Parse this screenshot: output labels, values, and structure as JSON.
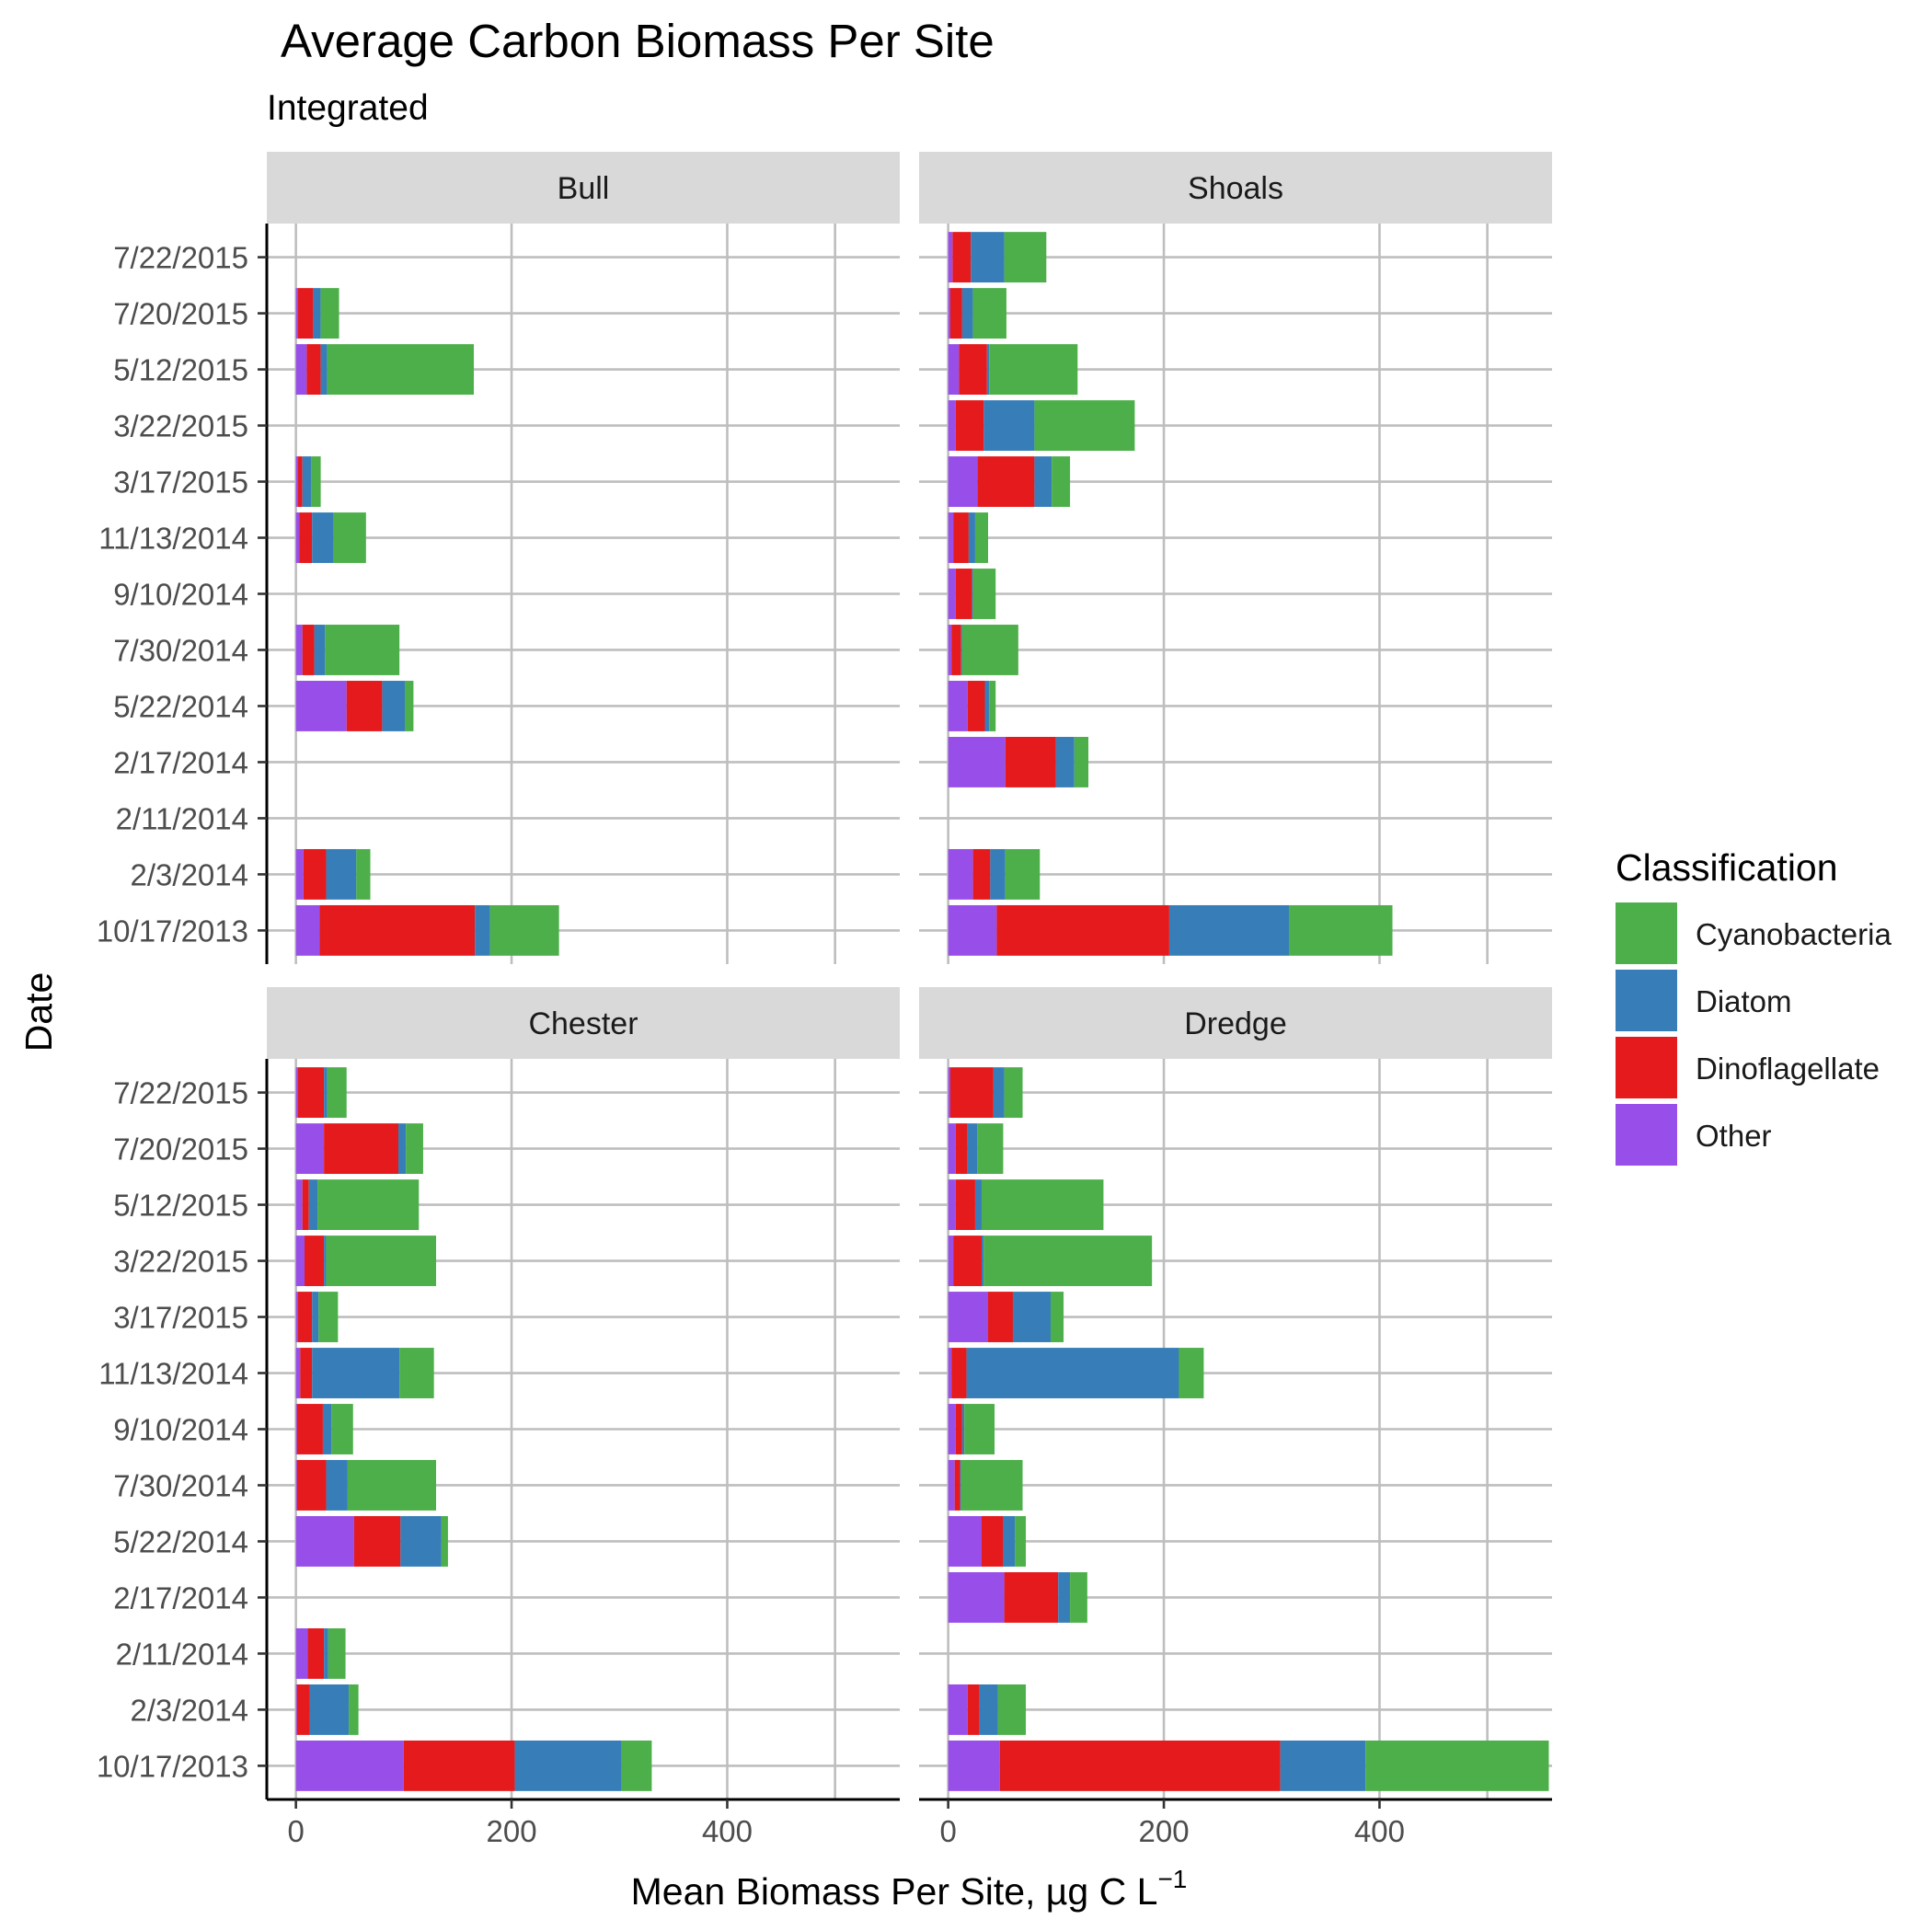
{
  "chart_data": {
    "type": "bar",
    "orientation": "horizontal",
    "stacked": true,
    "title": "Average Carbon Biomass Per Site",
    "subtitle": "Integrated",
    "xlabel": "Mean Biomass Per Site, µg C L",
    "xlabel_superscript": "−1",
    "ylabel": "Date",
    "legend_title": "Classification",
    "legend_position": "right",
    "grid": true,
    "xlim": [
      -27,
      560
    ],
    "xticks": [
      0,
      200,
      400
    ],
    "categories": [
      "7/22/2015",
      "7/20/2015",
      "5/12/2015",
      "3/22/2015",
      "3/17/2015",
      "11/13/2014",
      "9/10/2014",
      "7/30/2014",
      "5/22/2014",
      "2/17/2014",
      "2/11/2014",
      "2/3/2014",
      "10/17/2013"
    ],
    "stack_order": [
      "Other",
      "Dinoflagellate",
      "Diatom",
      "Cyanobacteria"
    ],
    "series_colors": {
      "Cyanobacteria": "#4DAF4A",
      "Diatom": "#377EB8",
      "Dinoflagellate": "#E41A1C",
      "Other": "#984EE8"
    },
    "legend_items": [
      "Cyanobacteria",
      "Diatom",
      "Dinoflagellate",
      "Other"
    ],
    "panels": [
      {
        "name": "Bull",
        "data": {
          "7/20/2015": {
            "Other": 2,
            "Dinoflagellate": 14,
            "Diatom": 7,
            "Cyanobacteria": 17
          },
          "5/12/2015": {
            "Other": 10,
            "Dinoflagellate": 13,
            "Diatom": 6,
            "Cyanobacteria": 136
          },
          "3/17/2015": {
            "Other": 2,
            "Dinoflagellate": 4,
            "Diatom": 8,
            "Cyanobacteria": 9
          },
          "11/13/2014": {
            "Other": 3,
            "Dinoflagellate": 12,
            "Diatom": 20,
            "Cyanobacteria": 30
          },
          "7/30/2014": {
            "Other": 6,
            "Dinoflagellate": 11,
            "Diatom": 10,
            "Cyanobacteria": 69
          },
          "5/22/2014": {
            "Other": 47,
            "Dinoflagellate": 33,
            "Diatom": 21,
            "Cyanobacteria": 8
          },
          "2/3/2014": {
            "Other": 7,
            "Dinoflagellate": 21,
            "Diatom": 28,
            "Cyanobacteria": 13
          },
          "10/17/2013": {
            "Other": 22,
            "Dinoflagellate": 144,
            "Diatom": 14,
            "Cyanobacteria": 64
          }
        }
      },
      {
        "name": "Shoals",
        "data": {
          "7/22/2015": {
            "Other": 4,
            "Dinoflagellate": 17,
            "Diatom": 31,
            "Cyanobacteria": 39
          },
          "7/20/2015": {
            "Other": 2,
            "Dinoflagellate": 11,
            "Diatom": 10,
            "Cyanobacteria": 31
          },
          "5/12/2015": {
            "Other": 10,
            "Dinoflagellate": 26,
            "Diatom": 2,
            "Cyanobacteria": 82
          },
          "3/22/2015": {
            "Other": 7,
            "Dinoflagellate": 26,
            "Diatom": 47,
            "Cyanobacteria": 93
          },
          "3/17/2015": {
            "Other": 27,
            "Dinoflagellate": 53,
            "Diatom": 16,
            "Cyanobacteria": 17
          },
          "11/13/2014": {
            "Other": 5,
            "Dinoflagellate": 14,
            "Diatom": 6,
            "Cyanobacteria": 12
          },
          "9/10/2014": {
            "Other": 7,
            "Dinoflagellate": 15,
            "Diatom": 1,
            "Cyanobacteria": 21
          },
          "7/30/2014": {
            "Other": 3,
            "Dinoflagellate": 9,
            "Diatom": 1,
            "Cyanobacteria": 52
          },
          "5/22/2014": {
            "Other": 18,
            "Dinoflagellate": 16,
            "Diatom": 4,
            "Cyanobacteria": 6
          },
          "2/17/2014": {
            "Other": 53,
            "Dinoflagellate": 47,
            "Diatom": 17,
            "Cyanobacteria": 13
          },
          "2/3/2014": {
            "Other": 23,
            "Dinoflagellate": 16,
            "Diatom": 14,
            "Cyanobacteria": 32
          },
          "10/17/2013": {
            "Other": 45,
            "Dinoflagellate": 160,
            "Diatom": 111,
            "Cyanobacteria": 96
          }
        }
      },
      {
        "name": "Chester",
        "data": {
          "7/22/2015": {
            "Other": 2,
            "Dinoflagellate": 24,
            "Diatom": 3,
            "Cyanobacteria": 18
          },
          "7/20/2015": {
            "Other": 26,
            "Dinoflagellate": 69,
            "Diatom": 7,
            "Cyanobacteria": 16
          },
          "5/12/2015": {
            "Other": 6,
            "Dinoflagellate": 6,
            "Diatom": 8,
            "Cyanobacteria": 94
          },
          "3/22/2015": {
            "Other": 8,
            "Dinoflagellate": 18,
            "Diatom": 2,
            "Cyanobacteria": 102
          },
          "3/17/2015": {
            "Other": 2,
            "Dinoflagellate": 13,
            "Diatom": 6,
            "Cyanobacteria": 18
          },
          "11/13/2014": {
            "Other": 4,
            "Dinoflagellate": 11,
            "Diatom": 81,
            "Cyanobacteria": 32
          },
          "9/10/2014": {
            "Other": 1,
            "Dinoflagellate": 24,
            "Diatom": 8,
            "Cyanobacteria": 20
          },
          "7/30/2014": {
            "Other": 1,
            "Dinoflagellate": 27,
            "Diatom": 20,
            "Cyanobacteria": 82
          },
          "5/22/2014": {
            "Other": 54,
            "Dinoflagellate": 43,
            "Diatom": 38,
            "Cyanobacteria": 6
          },
          "2/11/2014": {
            "Other": 11,
            "Dinoflagellate": 15,
            "Diatom": 4,
            "Cyanobacteria": 16
          },
          "2/3/2014": {
            "Other": 1,
            "Dinoflagellate": 12,
            "Diatom": 36,
            "Cyanobacteria": 9
          },
          "10/17/2013": {
            "Other": 100,
            "Dinoflagellate": 103,
            "Diatom": 99,
            "Cyanobacteria": 28
          }
        }
      },
      {
        "name": "Dredge",
        "data": {
          "7/22/2015": {
            "Other": 2,
            "Dinoflagellate": 40,
            "Diatom": 10,
            "Cyanobacteria": 17
          },
          "7/20/2015": {
            "Other": 7,
            "Dinoflagellate": 11,
            "Diatom": 9,
            "Cyanobacteria": 24
          },
          "5/12/2015": {
            "Other": 7,
            "Dinoflagellate": 18,
            "Diatom": 6,
            "Cyanobacteria": 113
          },
          "3/22/2015": {
            "Other": 5,
            "Dinoflagellate": 26,
            "Diatom": 2,
            "Cyanobacteria": 156
          },
          "3/17/2015": {
            "Other": 37,
            "Dinoflagellate": 23,
            "Diatom": 35,
            "Cyanobacteria": 12
          },
          "11/13/2014": {
            "Other": 3,
            "Dinoflagellate": 14,
            "Diatom": 197,
            "Cyanobacteria": 23
          },
          "9/10/2014": {
            "Other": 7,
            "Dinoflagellate": 6,
            "Diatom": 2,
            "Cyanobacteria": 28
          },
          "7/30/2014": {
            "Other": 6,
            "Dinoflagellate": 5,
            "Diatom": 1,
            "Cyanobacteria": 57
          },
          "5/22/2014": {
            "Other": 31,
            "Dinoflagellate": 20,
            "Diatom": 11,
            "Cyanobacteria": 10
          },
          "2/17/2014": {
            "Other": 52,
            "Dinoflagellate": 50,
            "Diatom": 11,
            "Cyanobacteria": 16
          },
          "2/3/2014": {
            "Other": 18,
            "Dinoflagellate": 11,
            "Diatom": 17,
            "Cyanobacteria": 26
          },
          "10/17/2013": {
            "Other": 48,
            "Dinoflagellate": 260,
            "Diatom": 79,
            "Cyanobacteria": 170
          }
        }
      }
    ]
  }
}
